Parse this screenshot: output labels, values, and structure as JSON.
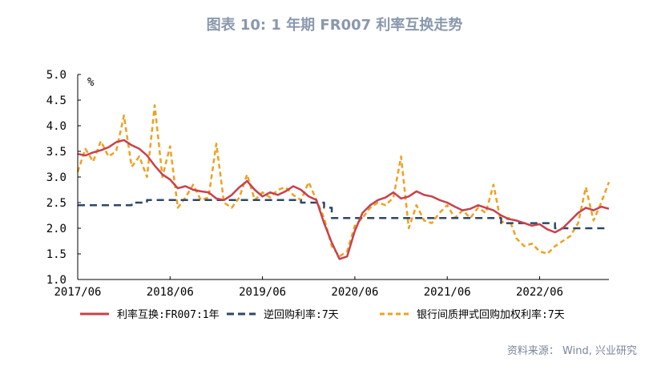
{
  "chart_data": {
    "type": "line",
    "title": "图表 10: 1 年期 FR007 利率互换走势",
    "unit_label": "%",
    "xlabel": "",
    "ylabel": "",
    "ylim": [
      1.0,
      5.0
    ],
    "y_ticks": [
      "5.0",
      "4.5",
      "4.0",
      "3.5",
      "3.0",
      "2.5",
      "2.0",
      "1.5",
      "1.0"
    ],
    "x_range": [
      "2017-06",
      "2023-03"
    ],
    "x_ticks": [
      {
        "date": "2017-06",
        "label": "2017/06"
      },
      {
        "date": "2018-06",
        "label": "2018/06"
      },
      {
        "date": "2019-06",
        "label": "2019/06"
      },
      {
        "date": "2020-06",
        "label": "2020/06"
      },
      {
        "date": "2021-06",
        "label": "2021/06"
      },
      {
        "date": "2022-06",
        "label": "2022/06"
      }
    ],
    "grid": false,
    "legend_position": "bottom",
    "series": [
      {
        "name": "利率互换:FR007:1年",
        "color": "#c8414b",
        "style": "solid",
        "points": [
          [
            "2017-06",
            3.45
          ],
          [
            "2017-07",
            3.42
          ],
          [
            "2017-08",
            3.48
          ],
          [
            "2017-09",
            3.52
          ],
          [
            "2017-10",
            3.58
          ],
          [
            "2017-11",
            3.68
          ],
          [
            "2017-12",
            3.72
          ],
          [
            "2018-01",
            3.62
          ],
          [
            "2018-02",
            3.55
          ],
          [
            "2018-03",
            3.42
          ],
          [
            "2018-04",
            3.22
          ],
          [
            "2018-05",
            3.05
          ],
          [
            "2018-06",
            2.95
          ],
          [
            "2018-07",
            2.78
          ],
          [
            "2018-08",
            2.82
          ],
          [
            "2018-09",
            2.75
          ],
          [
            "2018-10",
            2.72
          ],
          [
            "2018-11",
            2.7
          ],
          [
            "2018-12",
            2.58
          ],
          [
            "2019-01",
            2.55
          ],
          [
            "2019-02",
            2.65
          ],
          [
            "2019-03",
            2.8
          ],
          [
            "2019-04",
            2.92
          ],
          [
            "2019-05",
            2.75
          ],
          [
            "2019-06",
            2.62
          ],
          [
            "2019-07",
            2.7
          ],
          [
            "2019-08",
            2.65
          ],
          [
            "2019-09",
            2.72
          ],
          [
            "2019-10",
            2.82
          ],
          [
            "2019-11",
            2.75
          ],
          [
            "2019-12",
            2.62
          ],
          [
            "2020-01",
            2.55
          ],
          [
            "2020-02",
            2.1
          ],
          [
            "2020-03",
            1.72
          ],
          [
            "2020-04",
            1.4
          ],
          [
            "2020-05",
            1.45
          ],
          [
            "2020-06",
            1.95
          ],
          [
            "2020-07",
            2.3
          ],
          [
            "2020-08",
            2.45
          ],
          [
            "2020-09",
            2.55
          ],
          [
            "2020-10",
            2.6
          ],
          [
            "2020-11",
            2.7
          ],
          [
            "2020-12",
            2.58
          ],
          [
            "2021-01",
            2.62
          ],
          [
            "2021-02",
            2.72
          ],
          [
            "2021-03",
            2.65
          ],
          [
            "2021-04",
            2.62
          ],
          [
            "2021-05",
            2.55
          ],
          [
            "2021-06",
            2.5
          ],
          [
            "2021-07",
            2.42
          ],
          [
            "2021-08",
            2.35
          ],
          [
            "2021-09",
            2.38
          ],
          [
            "2021-10",
            2.45
          ],
          [
            "2021-11",
            2.4
          ],
          [
            "2021-12",
            2.35
          ],
          [
            "2022-01",
            2.25
          ],
          [
            "2022-02",
            2.18
          ],
          [
            "2022-03",
            2.15
          ],
          [
            "2022-04",
            2.1
          ],
          [
            "2022-05",
            2.05
          ],
          [
            "2022-06",
            2.08
          ],
          [
            "2022-07",
            1.98
          ],
          [
            "2022-08",
            1.92
          ],
          [
            "2022-09",
            2.0
          ],
          [
            "2022-10",
            2.15
          ],
          [
            "2022-11",
            2.3
          ],
          [
            "2022-12",
            2.4
          ],
          [
            "2023-01",
            2.35
          ],
          [
            "2023-02",
            2.42
          ],
          [
            "2023-03",
            2.38
          ]
        ]
      },
      {
        "name": "逆回购利率:7天",
        "color": "#2e4766",
        "style": "dashed",
        "points": [
          [
            "2017-06",
            2.45
          ],
          [
            "2018-01",
            2.45
          ],
          [
            "2018-01",
            2.5
          ],
          [
            "2018-03",
            2.5
          ],
          [
            "2018-03",
            2.55
          ],
          [
            "2019-11",
            2.55
          ],
          [
            "2019-11",
            2.5
          ],
          [
            "2020-02",
            2.5
          ],
          [
            "2020-02",
            2.4
          ],
          [
            "2020-03",
            2.4
          ],
          [
            "2020-03",
            2.2
          ],
          [
            "2022-01",
            2.2
          ],
          [
            "2022-01",
            2.1
          ],
          [
            "2022-08",
            2.1
          ],
          [
            "2022-08",
            2.0
          ],
          [
            "2023-03",
            2.0
          ]
        ]
      },
      {
        "name": "银行间质押式回购加权利率:7天",
        "color": "#f0a020",
        "style": "dashed",
        "points": [
          [
            "2017-06",
            3.1
          ],
          [
            "2017-07",
            3.55
          ],
          [
            "2017-08",
            3.3
          ],
          [
            "2017-09",
            3.7
          ],
          [
            "2017-10",
            3.4
          ],
          [
            "2017-11",
            3.5
          ],
          [
            "2017-12",
            4.2
          ],
          [
            "2018-01",
            3.2
          ],
          [
            "2018-02",
            3.4
          ],
          [
            "2018-03",
            3.0
          ],
          [
            "2018-04",
            4.4
          ],
          [
            "2018-05",
            3.0
          ],
          [
            "2018-06",
            3.6
          ],
          [
            "2018-07",
            2.4
          ],
          [
            "2018-08",
            2.6
          ],
          [
            "2018-09",
            2.85
          ],
          [
            "2018-10",
            2.55
          ],
          [
            "2018-11",
            2.6
          ],
          [
            "2018-12",
            3.65
          ],
          [
            "2019-01",
            2.5
          ],
          [
            "2019-02",
            2.4
          ],
          [
            "2019-03",
            2.6
          ],
          [
            "2019-04",
            3.05
          ],
          [
            "2019-05",
            2.55
          ],
          [
            "2019-06",
            2.7
          ],
          [
            "2019-07",
            2.6
          ],
          [
            "2019-08",
            2.75
          ],
          [
            "2019-09",
            2.8
          ],
          [
            "2019-10",
            2.65
          ],
          [
            "2019-11",
            2.55
          ],
          [
            "2019-12",
            2.9
          ],
          [
            "2020-01",
            2.55
          ],
          [
            "2020-02",
            2.2
          ],
          [
            "2020-03",
            1.65
          ],
          [
            "2020-04",
            1.45
          ],
          [
            "2020-05",
            1.55
          ],
          [
            "2020-06",
            2.05
          ],
          [
            "2020-07",
            2.2
          ],
          [
            "2020-08",
            2.4
          ],
          [
            "2020-09",
            2.5
          ],
          [
            "2020-10",
            2.45
          ],
          [
            "2020-11",
            2.6
          ],
          [
            "2020-12",
            3.4
          ],
          [
            "2021-01",
            2.0
          ],
          [
            "2021-02",
            2.45
          ],
          [
            "2021-03",
            2.15
          ],
          [
            "2021-04",
            2.1
          ],
          [
            "2021-05",
            2.3
          ],
          [
            "2021-06",
            2.45
          ],
          [
            "2021-07",
            2.2
          ],
          [
            "2021-08",
            2.35
          ],
          [
            "2021-09",
            2.2
          ],
          [
            "2021-10",
            2.4
          ],
          [
            "2021-11",
            2.3
          ],
          [
            "2021-12",
            2.85
          ],
          [
            "2022-01",
            2.1
          ],
          [
            "2022-02",
            2.2
          ],
          [
            "2022-03",
            1.8
          ],
          [
            "2022-04",
            1.65
          ],
          [
            "2022-05",
            1.7
          ],
          [
            "2022-06",
            1.55
          ],
          [
            "2022-07",
            1.5
          ],
          [
            "2022-08",
            1.65
          ],
          [
            "2022-09",
            1.75
          ],
          [
            "2022-10",
            1.85
          ],
          [
            "2022-11",
            2.1
          ],
          [
            "2022-12",
            2.8
          ],
          [
            "2023-01",
            2.15
          ],
          [
            "2023-02",
            2.5
          ],
          [
            "2023-03",
            2.9
          ]
        ]
      }
    ]
  },
  "source": "资料来源： Wind, 兴业研究"
}
